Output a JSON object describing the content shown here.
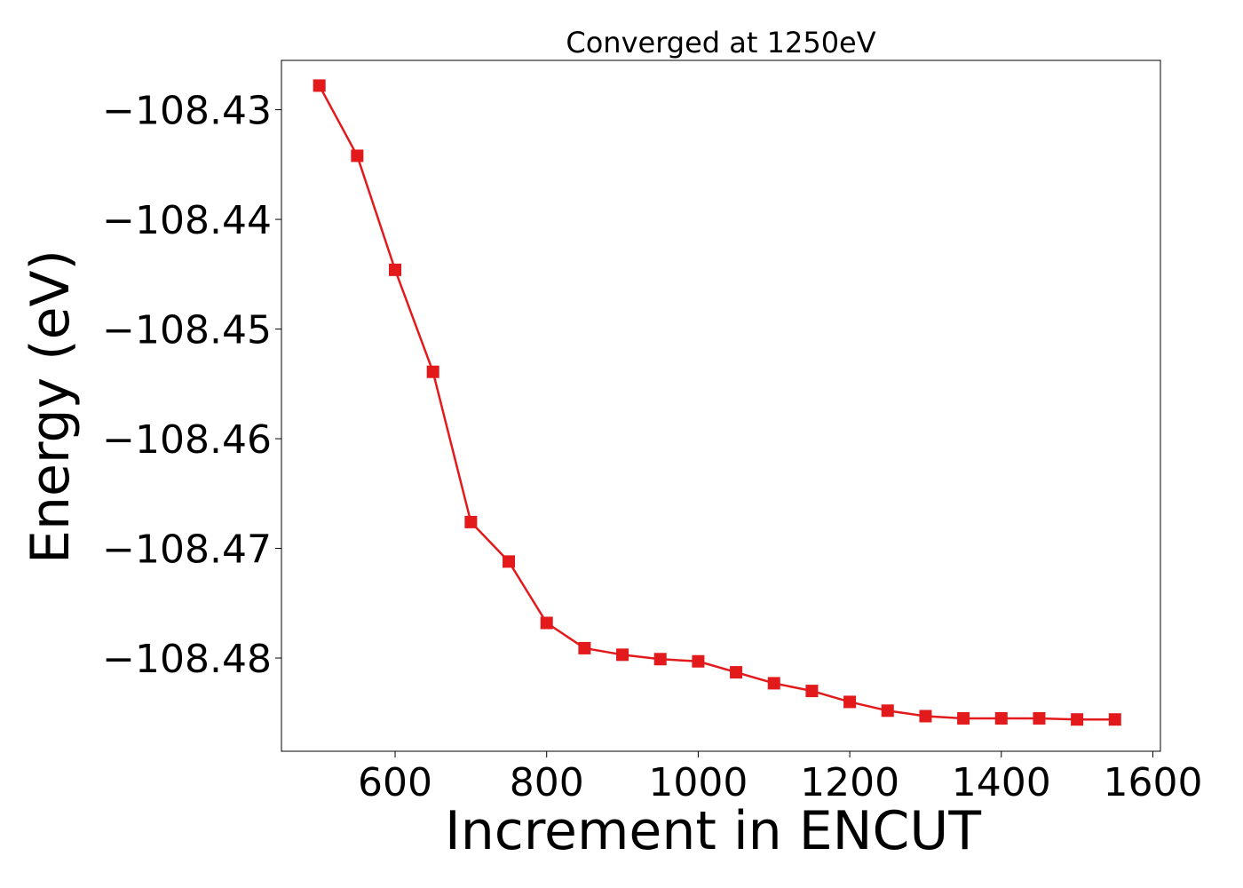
{
  "chart_data": {
    "type": "line",
    "title": "Converged at 1250eV",
    "xlabel": "Increment in ENCUT",
    "ylabel": "Energy (eV)",
    "xlim": [
      450,
      1610
    ],
    "ylim": [
      -108.4885,
      -108.4255
    ],
    "xticks": [
      600,
      800,
      1000,
      1200,
      1400,
      1600
    ],
    "xtick_labels": [
      "600",
      "800",
      "1000",
      "1200",
      "1400",
      "1600"
    ],
    "yticks": [
      -108.43,
      -108.44,
      -108.45,
      -108.46,
      -108.47,
      -108.48
    ],
    "ytick_labels": [
      "−108.43",
      "−108.44",
      "−108.45",
      "−108.46",
      "−108.47",
      "−108.48"
    ],
    "grid": false,
    "series": [
      {
        "color": "#e31a1c",
        "marker": "square",
        "x": [
          500,
          550,
          600,
          650,
          700,
          750,
          800,
          850,
          900,
          950,
          1000,
          1050,
          1100,
          1150,
          1200,
          1250,
          1300,
          1350,
          1400,
          1450,
          1500,
          1550
        ],
        "y": [
          -108.4278,
          -108.4342,
          -108.4446,
          -108.4539,
          -108.4676,
          -108.4712,
          -108.4768,
          -108.4791,
          -108.4797,
          -108.4801,
          -108.4803,
          -108.4813,
          -108.4823,
          -108.483,
          -108.484,
          -108.4848,
          -108.4853,
          -108.4855,
          -108.4855,
          -108.4855,
          -108.4856,
          -108.4856
        ]
      }
    ]
  }
}
